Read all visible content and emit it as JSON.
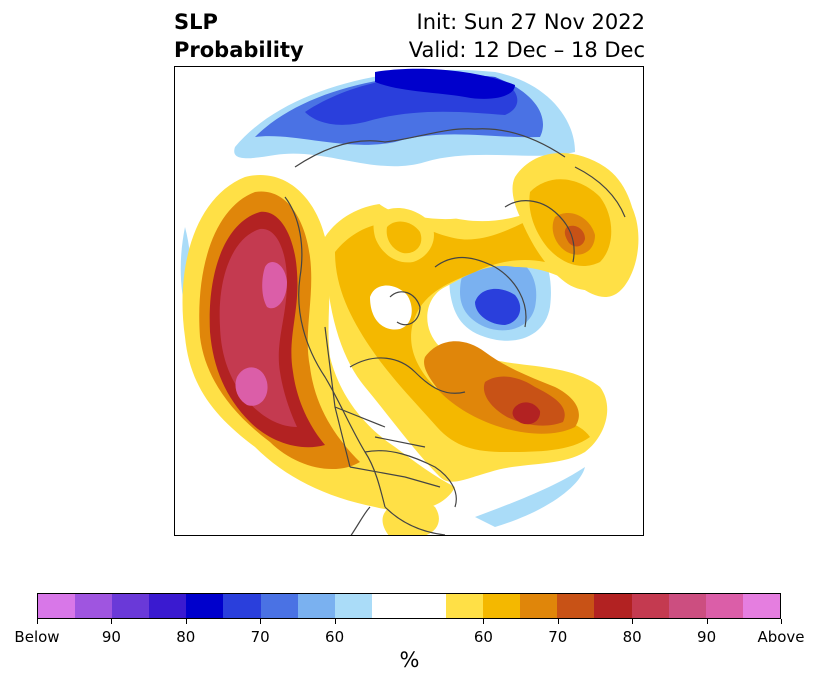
{
  "title": {
    "left_line1": "SLP",
    "left_line2": "Probability",
    "right_line1": "Init: Sun 27 Nov 2022",
    "right_line2": "Valid: 12 Dec – 18 Dec"
  },
  "colorbar": {
    "unit": "%",
    "colors": [
      "#d877e8",
      "#9f55e0",
      "#6a39d8",
      "#3a1ad0",
      "#0000cc",
      "#2a3fdc",
      "#4a72e4",
      "#7ab1f0",
      "#aadcf8",
      "#ffffff",
      "#ffffff",
      "#ffe046",
      "#f4b800",
      "#e0860a",
      "#c85216",
      "#b22222",
      "#c43a50",
      "#cc4e80",
      "#db5ea8",
      "#e57ee0"
    ],
    "tick_labels": [
      "Below",
      "90",
      "80",
      "70",
      "60",
      "60",
      "70",
      "80",
      "90",
      "Above"
    ]
  },
  "colors": {
    "above_60": "#ffe046",
    "above_65": "#f4b800",
    "above_70": "#e0860a",
    "above_75": "#c85216",
    "above_80": "#b22222",
    "above_85": "#c43a50",
    "above_90": "#cc4e80",
    "below_60": "#aadcf8",
    "below_65": "#7ab1f0",
    "below_70": "#4a72e4",
    "below_75": "#2a3fdc",
    "below_80": "#0000cc",
    "coastline": "#444444"
  }
}
